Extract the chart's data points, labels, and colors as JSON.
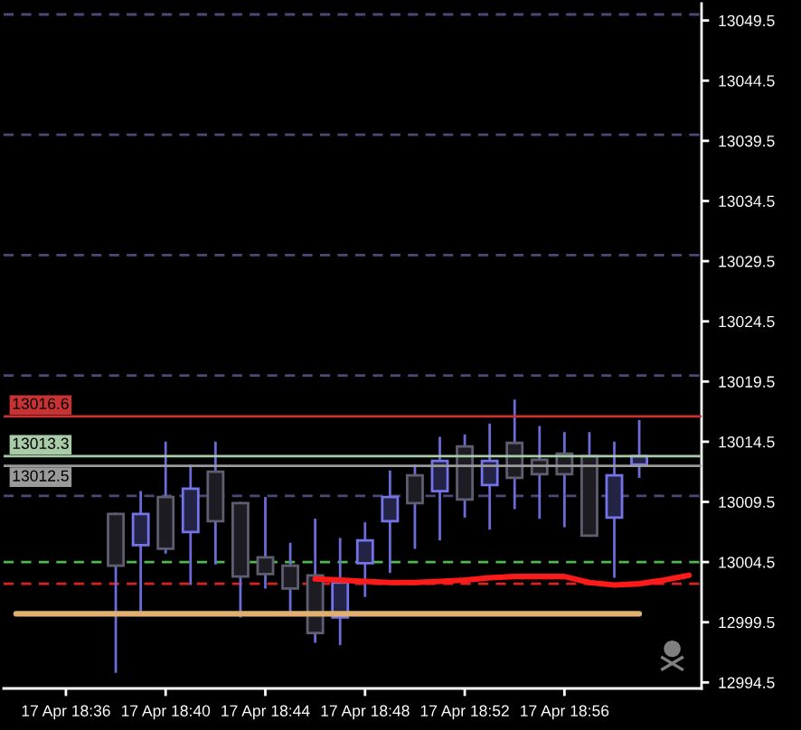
{
  "chart_data": {
    "type": "candlestick",
    "categories": [
      null,
      null,
      "17 Apr 18:36",
      null,
      null,
      null,
      "17 Apr 18:40",
      null,
      null,
      null,
      "17 Apr 18:44",
      null,
      null,
      null,
      "17 Apr 18:48",
      null,
      null,
      null,
      "17 Apr 18:52",
      null,
      null,
      null,
      "17 Apr 18:56",
      null,
      null,
      null,
      null,
      null
    ],
    "ohlc": [
      null,
      null,
      null,
      null,
      [
        13008.5,
        13008.5,
        12995.4,
        13004.2
      ],
      [
        13005.9,
        13010.3,
        13000.2,
        13008.5
      ],
      [
        13009.9,
        13014.4,
        13005.3,
        13005.6
      ],
      [
        13007.0,
        13012.5,
        13002.7,
        13010.6
      ],
      [
        13012.0,
        13014.4,
        13004.4,
        13007.9
      ],
      [
        13009.4,
        13009.4,
        13000.0,
        13003.3
      ],
      [
        13004.9,
        13009.8,
        13002.4,
        13003.5
      ],
      [
        13004.2,
        13006.0,
        13000.2,
        13002.3
      ],
      [
        13003.4,
        13008.0,
        12997.9,
        12998.6
      ],
      [
        12999.9,
        13006.4,
        12997.7,
        13002.8
      ],
      [
        13004.4,
        13007.7,
        13001.7,
        13006.3
      ],
      [
        13007.9,
        13012.0,
        13003.7,
        13009.9
      ],
      [
        13011.7,
        13012.5,
        13005.7,
        13009.4
      ],
      [
        13010.4,
        13014.8,
        13006.4,
        13012.9
      ],
      [
        13014.1,
        13015.0,
        13008.3,
        13009.7
      ],
      [
        13010.9,
        13015.9,
        13007.3,
        13012.9
      ],
      [
        13014.4,
        13017.9,
        13009.0,
        13011.5
      ],
      [
        13013.0,
        13015.7,
        13008.2,
        13011.8
      ],
      [
        13013.5,
        13015.2,
        13007.5,
        13011.8
      ],
      [
        13013.3,
        13015.2,
        13006.7,
        13006.7
      ],
      [
        13008.2,
        13014.4,
        13003.3,
        13011.7
      ],
      [
        13012.6,
        13016.2,
        13011.6,
        13013.3
      ],
      null,
      null
    ],
    "color": "#6c6cd8",
    "colors": [
      null,
      null,
      null,
      null,
      "#5e5e70",
      "#7474e8",
      "#5e5e70",
      "#7474e8",
      "#5e5e70",
      "#5e5e70",
      "#5e5e70",
      "#5e5e70",
      "#5e5e70",
      "#7474e8",
      "#7474e8",
      "#7474e8",
      "#5e5e70",
      "#7474e8",
      "#5e5e70",
      "#7474e8",
      "#5e5e70",
      "#5e5e70",
      "#5e5e70",
      "#5e5e70",
      "#7474e8",
      "#7474e8",
      null,
      null
    ],
    "series": [
      {
        "type": "line",
        "color": "#e0b070",
        "values": [
          13000.2,
          13000.2,
          13000.2,
          13000.2,
          13000.2,
          13000.2,
          13000.2,
          13000.2,
          13000.2,
          13000.2,
          13000.2,
          13000.2,
          13000.2,
          13000.2,
          13000.2,
          13000.2,
          13000.2,
          13000.2,
          13000.2,
          13000.2,
          13000.2,
          13000.2,
          13000.2,
          13000.2,
          13000.2,
          13000.2,
          null,
          null
        ]
      },
      {
        "type": "line",
        "color": "#ff1a1a",
        "values": [
          null,
          null,
          null,
          null,
          null,
          null,
          null,
          null,
          null,
          null,
          null,
          null,
          13003.1,
          13003.0,
          13002.9,
          13002.8,
          13002.8,
          13002.9,
          13003.0,
          13003.2,
          13003.3,
          13003.3,
          13003.3,
          13002.8,
          13002.6,
          13002.7,
          13003.0,
          13003.4
        ]
      }
    ],
    "ref_lines": [
      {
        "axis": "y",
        "value": 13050,
        "color": "#4a4a78",
        "line_style": "dashed"
      },
      {
        "axis": "y",
        "value": 13040,
        "color": "#4a4a78",
        "line_style": "dashed"
      },
      {
        "axis": "y",
        "value": 13030,
        "color": "#4a4a78",
        "line_style": "dashed"
      },
      {
        "axis": "y",
        "value": 13020,
        "color": "#4a4a78",
        "line_style": "dashed"
      },
      {
        "axis": "y",
        "value": 13010,
        "color": "#4a4a78",
        "line_style": "dashed"
      },
      {
        "axis": "y",
        "value": 13004.5,
        "color": "#50b850",
        "line_style": "dashed"
      },
      {
        "axis": "y",
        "value": 13002.7,
        "color": "#dd2020",
        "line_style": "dashed"
      },
      {
        "axis": "y",
        "value": 13016.6,
        "label": "13016.6",
        "color": "#c83232",
        "line_style": "solid"
      },
      {
        "axis": "y",
        "value": 13013.3,
        "label": "13013.3",
        "color": "#a8cca8",
        "line_style": "solid"
      },
      {
        "axis": "y",
        "value": 13012.5,
        "label": "13012.5",
        "color": "#9a9a9a",
        "line_style": "solid"
      }
    ],
    "ylim": [
      12994.0,
      13050.9
    ],
    "yticks": [
      12994.5,
      12999.5,
      13004.5,
      13009.5,
      13014.5,
      13019.5,
      13024.5,
      13029.5,
      13034.5,
      13039.5,
      13044.5,
      13049.5
    ]
  }
}
